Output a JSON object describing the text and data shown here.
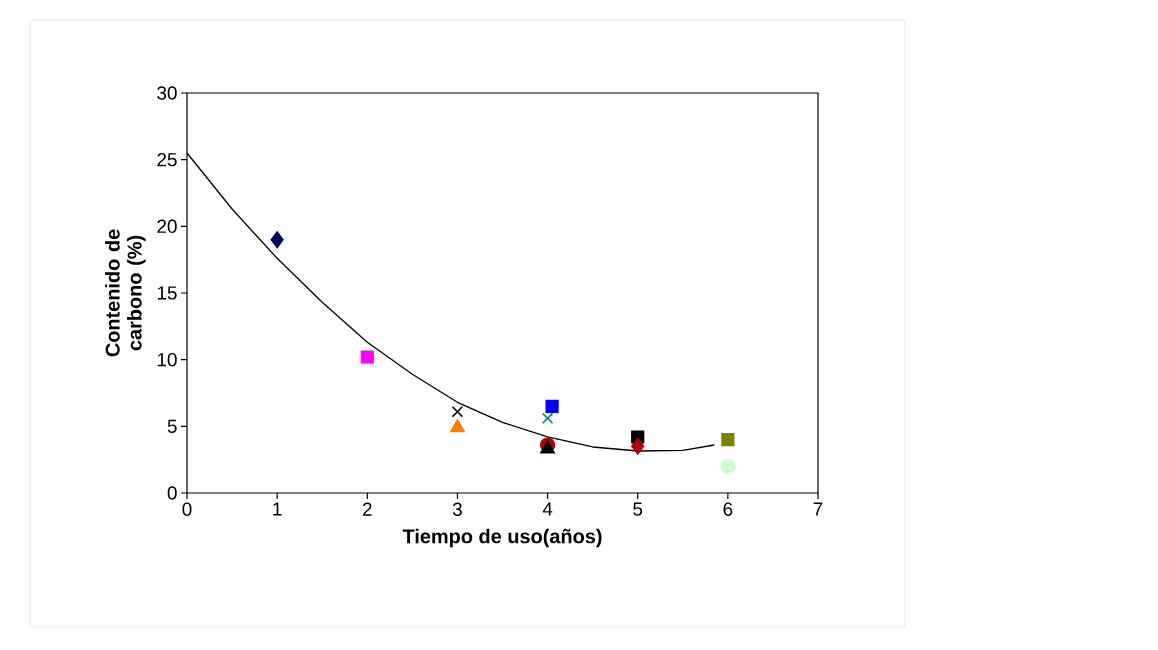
{
  "chart_data": {
    "type": "scatter",
    "xlabel": "Tiempo de uso(años)",
    "ylabel": "Contenido de carbono (%)",
    "xlim": [
      0,
      7
    ],
    "ylim": [
      0,
      30
    ],
    "xticks": [
      0,
      1,
      2,
      3,
      4,
      5,
      6,
      7
    ],
    "yticks": [
      0,
      5,
      10,
      15,
      20,
      25,
      30
    ],
    "grid": false,
    "series": [
      {
        "x": [
          1
        ],
        "values": [
          19.0
        ],
        "color": "#000066",
        "marker": "diamond"
      },
      {
        "x": [
          2
        ],
        "values": [
          10.2
        ],
        "color": "#ff00ff",
        "marker": "square"
      },
      {
        "x": [
          3
        ],
        "values": [
          6.1
        ],
        "color": "#000000",
        "marker": "cross"
      },
      {
        "x": [
          3
        ],
        "values": [
          4.9
        ],
        "color": "#ff7f00",
        "marker": "triangle"
      },
      {
        "x": [
          4
        ],
        "values": [
          5.6
        ],
        "color": "#008080",
        "marker": "cross"
      },
      {
        "x": [
          4.05
        ],
        "values": [
          6.5
        ],
        "color": "#0000ff",
        "marker": "square"
      },
      {
        "x": [
          4
        ],
        "values": [
          3.6
        ],
        "color": "#b00000",
        "marker": "circle"
      },
      {
        "x": [
          4
        ],
        "values": [
          3.3
        ],
        "color": "#000000",
        "marker": "triangle"
      },
      {
        "x": [
          5
        ],
        "values": [
          4.2
        ],
        "color": "#000000",
        "marker": "square"
      },
      {
        "x": [
          5
        ],
        "values": [
          3.5
        ],
        "color": "#b00000",
        "marker": "diamond"
      },
      {
        "x": [
          6
        ],
        "values": [
          4.0
        ],
        "color": "#808000",
        "marker": "square"
      },
      {
        "x": [
          6
        ],
        "values": [
          2.0
        ],
        "color": "#ccffcc",
        "marker": "circle"
      },
      {
        "type": "line",
        "x": [
          0,
          0.5,
          1,
          1.5,
          2,
          2.5,
          3,
          3.5,
          4,
          4.5,
          5,
          5.5,
          5.85
        ],
        "values": [
          25.5,
          21.3,
          17.6,
          14.3,
          11.3,
          8.9,
          6.8,
          5.3,
          4.2,
          3.45,
          3.15,
          3.2,
          3.6
        ],
        "color": "#000000",
        "marker": "none"
      }
    ]
  }
}
